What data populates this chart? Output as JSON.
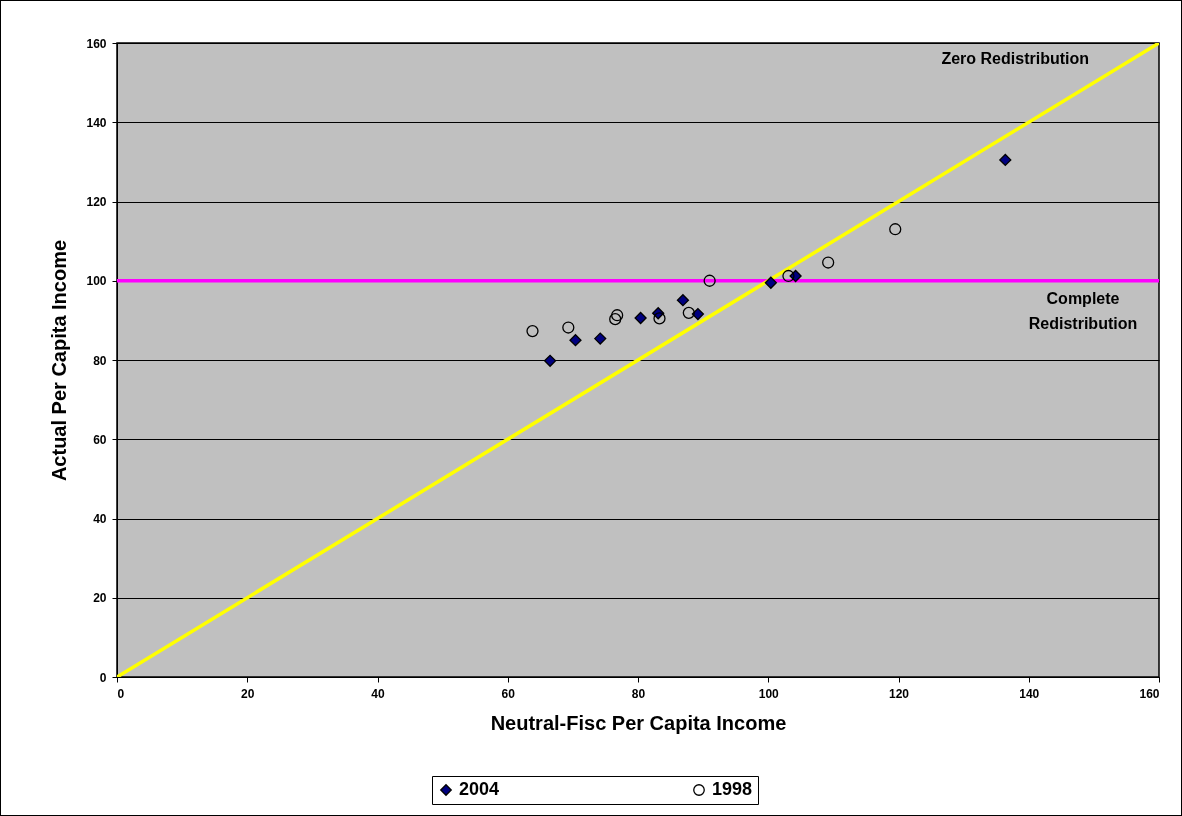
{
  "chart_data": {
    "type": "scatter",
    "xlabel": "Neutral-Fisc Per Capita Income",
    "ylabel": "Actual Per Capita Income",
    "xlim": [
      0,
      160
    ],
    "ylim": [
      0,
      160
    ],
    "xticks": [
      0,
      20,
      40,
      60,
      80,
      100,
      120,
      140,
      160
    ],
    "yticks": [
      0,
      20,
      40,
      60,
      80,
      100,
      120,
      140,
      160
    ],
    "grid": "y",
    "legend": "bottom",
    "series": [
      {
        "name": "2004",
        "color": "#000080",
        "marker": "diamond",
        "x": [
          66.5,
          70.4,
          74.2,
          80.4,
          83.1,
          86.9,
          89.2,
          100.4,
          104.2,
          136.4
        ],
        "values": [
          79.8,
          85.0,
          85.4,
          90.6,
          91.8,
          95.1,
          91.6,
          99.5,
          101.2,
          130.5
        ]
      },
      {
        "name": "1998",
        "color": "#000000",
        "marker": "circle",
        "x": [
          63.8,
          69.3,
          76.5,
          76.8,
          83.3,
          87.8,
          91.0,
          103.1,
          109.2,
          119.5
        ],
        "values": [
          87.3,
          88.2,
          90.3,
          91.3,
          90.5,
          91.9,
          100.0,
          101.2,
          104.6,
          113.0
        ]
      },
      {
        "name": "Zero Redistribution",
        "type": "line",
        "color": "#ffff00",
        "marker": "none",
        "x": [
          0,
          160
        ],
        "values": [
          0,
          160
        ]
      }
    ],
    "ref_lines": [
      {
        "axis": "y",
        "value": 100,
        "label": "Complete Redistribution",
        "color": "#ff00ff"
      }
    ]
  }
}
